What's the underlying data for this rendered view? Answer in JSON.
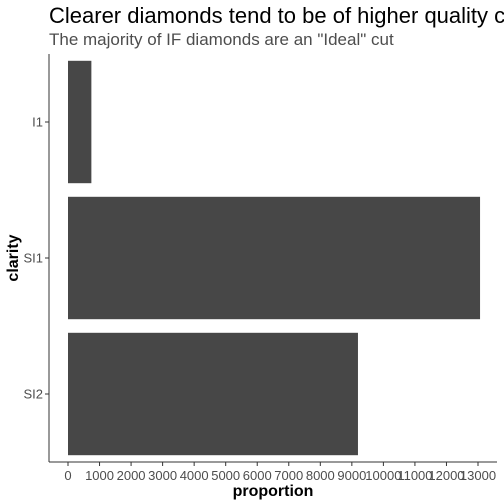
{
  "chart_data": {
    "type": "bar",
    "orientation": "horizontal",
    "title": "Clearer diamonds tend to be of higher quality cut",
    "subtitle": "The majority of IF diamonds are an \"Ideal\" cut",
    "xlabel": "proportion",
    "ylabel": "clarity",
    "categories": [
      "I1",
      "SI1",
      "SI2"
    ],
    "values": [
      741,
      13065,
      9194
    ],
    "xlim": [
      -600,
      13800
    ],
    "xticks": [
      0,
      1000,
      2000,
      3000,
      4000,
      5000,
      6000,
      7000,
      8000,
      9000,
      10000,
      11000,
      12000,
      13000
    ],
    "grid": false,
    "legend": "none",
    "bar_color": "#474747",
    "axis_color": "#333333"
  }
}
